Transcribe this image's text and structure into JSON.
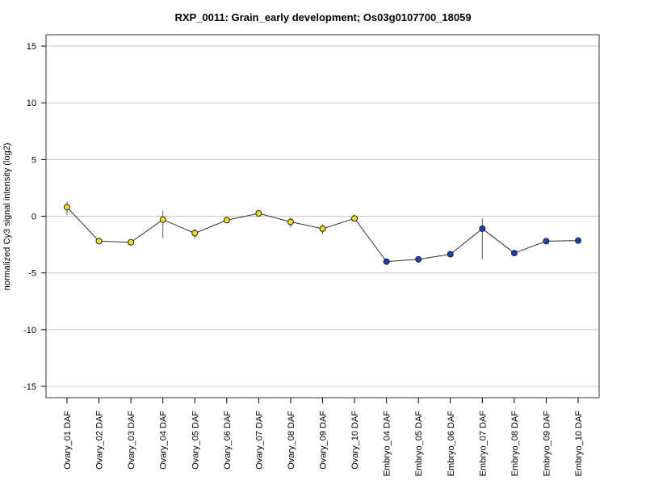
{
  "chart_data": {
    "type": "line",
    "title": "RXP_0011: Grain_early development; Os03g0107700_18059",
    "xlabel": "",
    "ylabel": "normalized Cy3 signal intensity (log2)",
    "ylim": [
      -16,
      16
    ],
    "yticks": [
      15,
      10,
      5,
      0,
      -5,
      -10,
      -15
    ],
    "grid": "horizontal",
    "categories": [
      "Ovary_01 DAF",
      "Ovary_02 DAF",
      "Ovary_03 DAF",
      "Ovary_04 DAF",
      "Ovary_05 DAF",
      "Ovary_06 DAF",
      "Ovary_07 DAF",
      "Ovary_08 DAF",
      "Ovary_09 DAF",
      "Ovary_10 DAF",
      "Embryo_04 DAF",
      "Embryo_05 DAF",
      "Embryo_06 DAF",
      "Embryo_07 DAF",
      "Embryo_08 DAF",
      "Embryo_09 DAF",
      "Embryo_10 DAF"
    ],
    "values": [
      0.8,
      -2.2,
      -2.3,
      -0.3,
      -1.5,
      -0.35,
      0.25,
      -0.5,
      -1.1,
      -0.2,
      -4.0,
      -3.8,
      -3.35,
      -1.1,
      -3.25,
      -2.2,
      -2.15
    ],
    "error_low": [
      0.1,
      -2.4,
      -2.45,
      -1.9,
      -2.0,
      -0.5,
      0.0,
      -1.0,
      -1.6,
      -0.35,
      -4.15,
      -4.1,
      -3.55,
      -3.8,
      -3.4,
      -2.4,
      -2.3
    ],
    "error_high": [
      1.3,
      -2.0,
      -2.15,
      0.5,
      -1.1,
      -0.2,
      0.5,
      -0.1,
      -0.7,
      -0.05,
      -3.9,
      -3.55,
      -3.15,
      -0.2,
      -3.1,
      -2.0,
      -2.0
    ],
    "point_colors": [
      "#f2e01a",
      "#f2e01a",
      "#f2e01a",
      "#f2e01a",
      "#f2e01a",
      "#f2e01a",
      "#f2e01a",
      "#f2e01a",
      "#f2e01a",
      "#f2e01a",
      "#1b3fbf",
      "#1b3fbf",
      "#1b3fbf",
      "#1b3fbf",
      "#1b3fbf",
      "#1b3fbf",
      "#1b3fbf"
    ],
    "line_color": "#333333",
    "grid_color": "#c8c8c8"
  }
}
